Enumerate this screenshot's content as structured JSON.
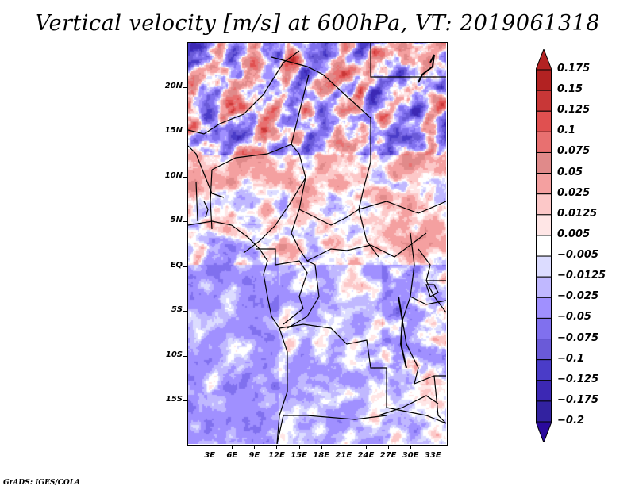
{
  "title": "Vertical velocity [m/s] at 600hPa, VT: 2019061318",
  "credit": "GrADS: IGES/COLA",
  "map": {
    "variable": "Vertical velocity",
    "units": "m/s",
    "level": "600hPa",
    "valid_time": "2019061318",
    "lat_range": [
      -20,
      25
    ],
    "lon_range": [
      0,
      35
    ],
    "lat_ticks": [
      {
        "value": 20,
        "label": "20N"
      },
      {
        "value": 15,
        "label": "15N"
      },
      {
        "value": 10,
        "label": "10N"
      },
      {
        "value": 5,
        "label": "5N"
      },
      {
        "value": 0,
        "label": "EQ"
      },
      {
        "value": -5,
        "label": "5S"
      },
      {
        "value": -10,
        "label": "10S"
      },
      {
        "value": -15,
        "label": "15S"
      }
    ],
    "lon_ticks": [
      {
        "value": 3,
        "label": "3E"
      },
      {
        "value": 6,
        "label": "6E"
      },
      {
        "value": 9,
        "label": "9E"
      },
      {
        "value": 12,
        "label": "12E"
      },
      {
        "value": 15,
        "label": "15E"
      },
      {
        "value": 18,
        "label": "18E"
      },
      {
        "value": 21,
        "label": "21E"
      },
      {
        "value": 24,
        "label": "24E"
      },
      {
        "value": 27,
        "label": "27E"
      },
      {
        "value": 30,
        "label": "30E"
      },
      {
        "value": 33,
        "label": "33E"
      }
    ]
  },
  "colorbar": {
    "orientation": "vertical",
    "placement": "right",
    "extend": "both",
    "levels": [
      {
        "label": "0.175",
        "color": "#b22222"
      },
      {
        "label": "0.15",
        "color": "#c83737"
      },
      {
        "label": "0.125",
        "color": "#e05050"
      },
      {
        "label": "0.1",
        "color": "#e87070"
      },
      {
        "label": "0.075",
        "color": "#e08a8a"
      },
      {
        "label": "0.05",
        "color": "#f4a0a0"
      },
      {
        "label": "0.025",
        "color": "#fcc8c8"
      },
      {
        "label": "0.0125",
        "color": "#ffe6e6"
      },
      {
        "label": "0.005",
        "color": "#ffffff"
      },
      {
        "label": "-0.005",
        "color": "#dcdcff"
      },
      {
        "label": "-0.0125",
        "color": "#c0b8ff"
      },
      {
        "label": "-0.025",
        "color": "#a090ff"
      },
      {
        "label": "-0.05",
        "color": "#8070ee"
      },
      {
        "label": "-0.075",
        "color": "#6a5ad8"
      },
      {
        "label": "-0.1",
        "color": "#4a3cc8"
      },
      {
        "label": "-0.125",
        "color": "#3c28b4"
      },
      {
        "label": "-0.175",
        "color": "#3222a0"
      },
      {
        "label": "-0.2",
        "color": "#2a0a9c"
      }
    ],
    "top_arrow_color": "#b22222",
    "bottom_arrow_color": "#2a0a9c"
  }
}
